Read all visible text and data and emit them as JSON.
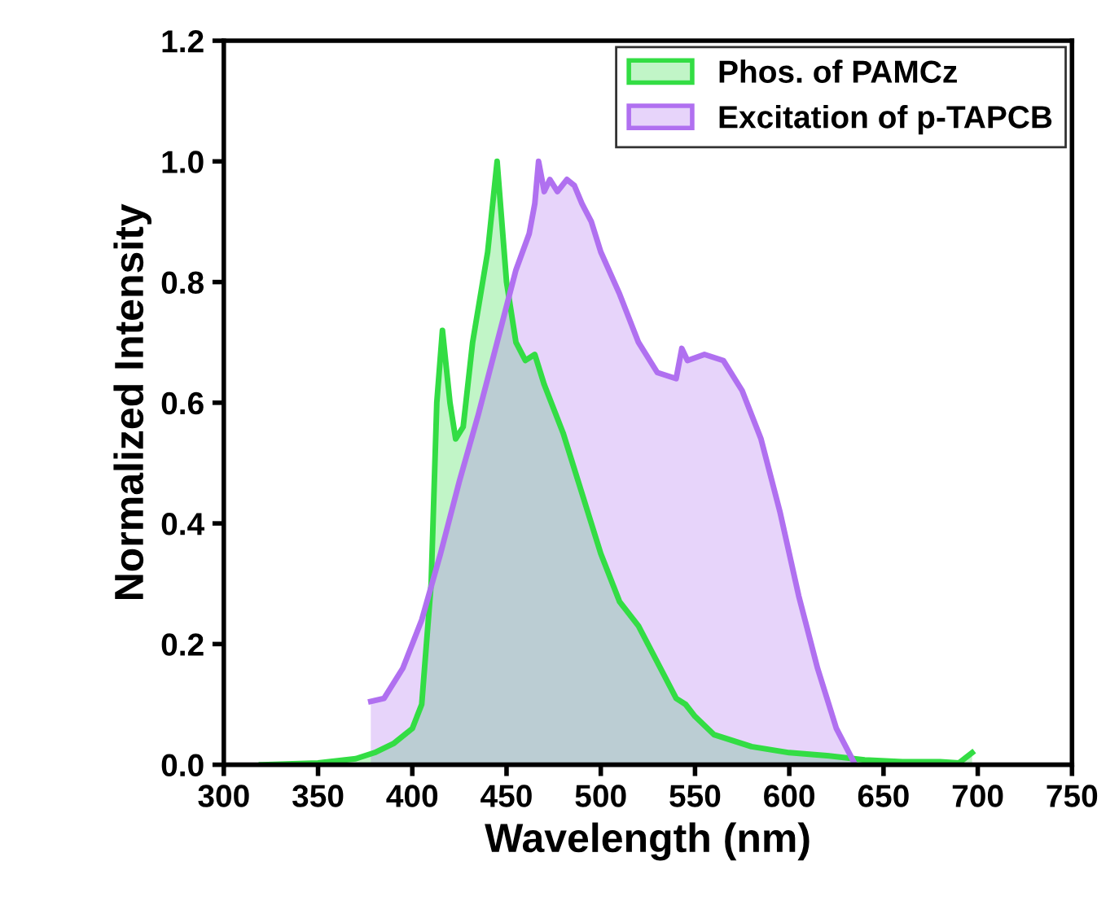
{
  "chart_data": {
    "type": "area",
    "xlabel": "Wavelength (nm)",
    "ylabel": "Normalized Intensity",
    "xlim": [
      300,
      750
    ],
    "xticks": [
      300,
      350,
      400,
      450,
      500,
      550,
      600,
      650,
      700,
      750
    ],
    "ylim": [
      0,
      1.2
    ],
    "yticks": [
      {
        "value": 0,
        "label": "0.0"
      },
      0.2,
      0.4,
      0.6,
      0.8,
      {
        "value": 1,
        "label": "1.0"
      },
      1.2
    ],
    "grid": false,
    "legend": "top right",
    "series": [
      {
        "name": "Phos. of PAMCz",
        "color": "#33dd44",
        "x": [
          320,
          350,
          370,
          380,
          390,
          400,
          405,
          410,
          413,
          416,
          420,
          423,
          427,
          432,
          440,
          445,
          450,
          455,
          460,
          465,
          470,
          480,
          490,
          500,
          510,
          520,
          530,
          540,
          545,
          550,
          560,
          580,
          600,
          620,
          640,
          660,
          680,
          690,
          697
        ],
        "values": [
          0,
          0.003,
          0.01,
          0.02,
          0.035,
          0.06,
          0.1,
          0.3,
          0.6,
          0.72,
          0.6,
          0.54,
          0.56,
          0.7,
          0.85,
          1.0,
          0.8,
          0.7,
          0.67,
          0.68,
          0.63,
          0.55,
          0.45,
          0.35,
          0.27,
          0.23,
          0.17,
          0.11,
          0.1,
          0.08,
          0.05,
          0.03,
          0.02,
          0.015,
          0.008,
          0.005,
          0.005,
          0.003,
          0.02
        ]
      },
      {
        "name": "Excitation of p-TAPCB",
        "color": "#b070f0",
        "x": [
          378,
          385,
          395,
          405,
          415,
          425,
          435,
          445,
          455,
          462,
          465,
          467,
          470,
          473,
          477,
          482,
          486,
          490,
          495,
          500,
          510,
          520,
          530,
          540,
          543,
          546,
          555,
          565,
          575,
          585,
          595,
          605,
          615,
          625,
          635
        ],
        "values": [
          0.105,
          0.11,
          0.16,
          0.24,
          0.35,
          0.47,
          0.58,
          0.7,
          0.82,
          0.88,
          0.93,
          1.0,
          0.95,
          0.97,
          0.95,
          0.97,
          0.96,
          0.93,
          0.9,
          0.85,
          0.78,
          0.7,
          0.65,
          0.64,
          0.69,
          0.67,
          0.68,
          0.67,
          0.62,
          0.54,
          0.42,
          0.28,
          0.16,
          0.06,
          0.0
        ]
      }
    ]
  }
}
